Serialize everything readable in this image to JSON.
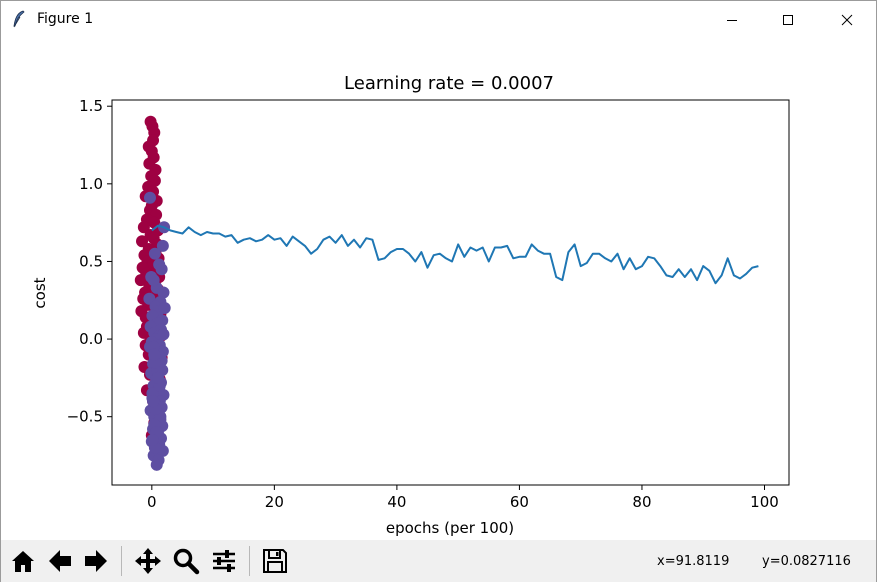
{
  "window": {
    "title": "Figure 1",
    "icons": [
      "feather-icon",
      "minimize-icon",
      "maximize-icon",
      "close-icon"
    ]
  },
  "toolbar": {
    "buttons": [
      "home-icon",
      "back-arrow-icon",
      "forward-arrow-icon",
      "pan-move-icon",
      "zoom-magnifier-icon",
      "configure-subplots-icon",
      "save-floppy-icon"
    ],
    "coord_x": "x=91.8119",
    "coord_y": "y=0.0827116"
  },
  "chart_data": {
    "type": "line",
    "title": "Learning rate = 0.0007",
    "xlabel": "epochs (per 100)",
    "ylabel": "cost",
    "xlim": [
      -6.5,
      104
    ],
    "ylim": [
      -0.94,
      1.54
    ],
    "xticks": [
      0,
      20,
      40,
      60,
      80,
      100
    ],
    "yticks": [
      -0.5,
      0.0,
      0.5,
      1.0,
      1.5
    ],
    "xtick_labels": [
      "0",
      "20",
      "40",
      "60",
      "80",
      "100"
    ],
    "ytick_labels": [
      "−0.5",
      "0.0",
      "0.5",
      "1.0",
      "1.5"
    ],
    "grid": false,
    "colors": {
      "line": "#1f77b4",
      "class_a": "#9e0142",
      "class_b": "#5e4fa2"
    },
    "series": [
      {
        "type": "line",
        "x": [
          0,
          1,
          2,
          3,
          4,
          5,
          6,
          7,
          8,
          9,
          10,
          11,
          12,
          13,
          14,
          15,
          16,
          17,
          18,
          19,
          20,
          21,
          22,
          23,
          24,
          25,
          26,
          27,
          28,
          29,
          30,
          31,
          32,
          33,
          34,
          35,
          36,
          37,
          38,
          39,
          40,
          41,
          42,
          43,
          44,
          45,
          46,
          47,
          48,
          49,
          50,
          51,
          52,
          53,
          54,
          55,
          56,
          57,
          58,
          59,
          60,
          61,
          62,
          63,
          64,
          65,
          66,
          67,
          68,
          69,
          70,
          71,
          72,
          73,
          74,
          75,
          76,
          77,
          78,
          79,
          80,
          81,
          82,
          83,
          84,
          85,
          86,
          87,
          88,
          89,
          90,
          91,
          92,
          93,
          94,
          95,
          96,
          97,
          98,
          99
        ],
        "y": [
          0.7,
          0.73,
          0.72,
          0.7,
          0.69,
          0.68,
          0.72,
          0.69,
          0.67,
          0.69,
          0.68,
          0.68,
          0.66,
          0.67,
          0.62,
          0.64,
          0.65,
          0.63,
          0.64,
          0.67,
          0.64,
          0.65,
          0.6,
          0.66,
          0.63,
          0.6,
          0.55,
          0.58,
          0.64,
          0.66,
          0.62,
          0.67,
          0.6,
          0.64,
          0.59,
          0.65,
          0.64,
          0.51,
          0.52,
          0.56,
          0.58,
          0.58,
          0.55,
          0.5,
          0.56,
          0.46,
          0.54,
          0.55,
          0.52,
          0.5,
          0.61,
          0.53,
          0.59,
          0.57,
          0.59,
          0.5,
          0.59,
          0.59,
          0.6,
          0.52,
          0.53,
          0.53,
          0.61,
          0.57,
          0.55,
          0.55,
          0.4,
          0.38,
          0.56,
          0.61,
          0.47,
          0.49,
          0.55,
          0.55,
          0.52,
          0.5,
          0.55,
          0.45,
          0.52,
          0.45,
          0.47,
          0.53,
          0.52,
          0.47,
          0.41,
          0.4,
          0.45,
          0.4,
          0.45,
          0.38,
          0.47,
          0.44,
          0.36,
          0.41,
          0.52,
          0.41,
          0.39,
          0.42,
          0.46,
          0.47
        ]
      },
      {
        "type": "scatter",
        "x": [
          -0.2,
          0.1,
          0.4,
          0.2,
          -0.5,
          0.0,
          0.3,
          -0.4,
          0.6,
          -0.1,
          0.5,
          -0.6,
          0.2,
          -1.0,
          0.8,
          0.0,
          -0.3,
          0.7,
          -0.8,
          0.4,
          -1.3,
          1.0,
          -0.2,
          0.3,
          -1.6,
          0.9,
          -0.5,
          0.6,
          -1.2,
          1.1,
          -0.7,
          0.2,
          -1.5,
          0.8,
          -0.9,
          1.2,
          -1.8,
          0.5,
          -0.4,
          1.0,
          -1.1,
          0.7,
          -1.4,
          1.3,
          -0.6,
          0.9,
          -1.7,
          1.4,
          -1.0,
          0.3,
          1.1,
          -0.8,
          0.6,
          -1.3,
          1.5,
          -0.2,
          0.8,
          -1.0,
          1.2,
          0.1,
          -0.5,
          1.6,
          0.4,
          -1.2,
          0.9,
          -0.3,
          1.3,
          0.6,
          -0.8,
          1.0,
          0.2,
          0.7,
          -0.1,
          1.1,
          0.4,
          0.8,
          0.0,
          1.2,
          0.3,
          0.9
        ],
        "y": [
          1.4,
          1.37,
          1.33,
          1.28,
          1.24,
          1.21,
          1.17,
          1.13,
          1.09,
          1.05,
          1.02,
          0.98,
          0.95,
          0.92,
          0.89,
          0.86,
          0.83,
          0.8,
          0.77,
          0.75,
          0.72,
          0.7,
          0.67,
          0.65,
          0.63,
          0.61,
          0.58,
          0.56,
          0.54,
          0.52,
          0.5,
          0.48,
          0.46,
          0.44,
          0.42,
          0.4,
          0.38,
          0.36,
          0.34,
          0.32,
          0.3,
          0.28,
          0.26,
          0.24,
          0.22,
          0.2,
          0.18,
          0.16,
          0.14,
          0.12,
          0.1,
          0.08,
          0.06,
          0.04,
          0.02,
          0.0,
          -0.02,
          -0.04,
          -0.06,
          -0.08,
          -0.1,
          -0.12,
          -0.15,
          -0.18,
          -0.2,
          -0.23,
          -0.26,
          -0.3,
          -0.33,
          -0.36,
          -0.4,
          -0.43,
          -0.46,
          -0.5,
          -0.54,
          -0.58,
          -0.62,
          -0.65,
          0.25,
          0.45
        ]
      },
      {
        "type": "scatter",
        "x": [
          -0.3,
          2.0,
          1.8,
          0.5,
          1.2,
          -0.1,
          1.6,
          0.8,
          0.3,
          1.9,
          -0.4,
          1.4,
          0.6,
          1.0,
          2.1,
          0.1,
          1.7,
          0.9,
          -0.2,
          1.5,
          0.4,
          1.2,
          0.7,
          1.9,
          0.0,
          1.3,
          0.6,
          1.8,
          -0.3,
          1.1,
          0.5,
          1.6,
          0.2,
          1.4,
          0.9,
          1.7,
          -0.1,
          1.0,
          0.7,
          1.5,
          0.3,
          1.2,
          0.8,
          1.9,
          0.1,
          1.3,
          0.6,
          1.6,
          -0.2,
          1.1,
          0.4,
          1.4,
          0.9,
          1.7,
          0.2,
          1.0,
          0.7,
          1.5,
          0.0,
          1.2,
          0.5,
          1.8,
          0.3,
          1.1,
          0.8,
          1.4,
          0.1,
          0.9,
          0.6,
          1.3,
          0.4,
          1.0,
          0.2,
          0.7,
          0.5,
          0.3,
          0.6,
          0.1,
          0.4
        ],
        "y": [
          0.91,
          0.72,
          0.6,
          0.55,
          0.48,
          0.4,
          0.45,
          0.33,
          0.38,
          0.3,
          0.26,
          0.24,
          0.21,
          0.18,
          0.2,
          0.15,
          0.12,
          0.1,
          0.08,
          0.06,
          0.04,
          0.02,
          0.0,
          0.03,
          -0.02,
          -0.04,
          -0.06,
          -0.08,
          -0.05,
          -0.1,
          -0.12,
          -0.14,
          -0.16,
          -0.12,
          -0.18,
          -0.2,
          -0.22,
          -0.24,
          -0.26,
          -0.28,
          -0.3,
          -0.32,
          -0.34,
          -0.36,
          -0.38,
          -0.4,
          -0.42,
          -0.44,
          -0.46,
          -0.48,
          -0.5,
          -0.52,
          -0.54,
          -0.56,
          -0.58,
          -0.6,
          -0.62,
          -0.64,
          -0.66,
          -0.68,
          -0.7,
          -0.72,
          -0.75,
          -0.78,
          -0.81,
          -0.5,
          -0.35,
          -0.2,
          -0.45,
          -0.3,
          -0.55,
          -0.25,
          -0.4,
          -0.6,
          -0.15,
          -0.05,
          -0.7,
          -0.65,
          -0.1
        ]
      }
    ]
  }
}
